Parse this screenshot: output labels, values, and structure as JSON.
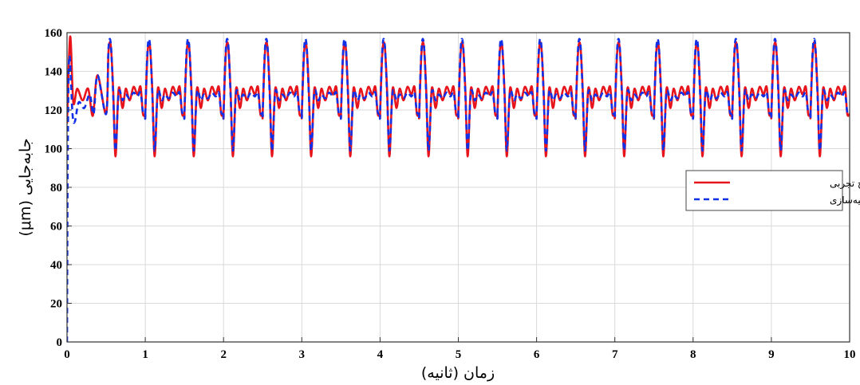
{
  "chart_data": {
    "type": "line",
    "xlabel": "زمان (ثانیه)",
    "ylabel": "جابه‌جایی (μm)",
    "xlim": [
      0,
      10
    ],
    "ylim": [
      0,
      160
    ],
    "xticks": [
      "0",
      "1",
      "2",
      "3",
      "4",
      "5",
      "6",
      "7",
      "8",
      "9",
      "10"
    ],
    "yticks": [
      "0",
      "20",
      "40",
      "60",
      "80",
      "100",
      "120",
      "140",
      "160"
    ],
    "grid": true,
    "legend_position": "right",
    "series": [
      {
        "name": "پاسخ تجربی",
        "color": "#e8141c",
        "style": "solid",
        "period_s": 0.5,
        "pattern": [
          [
            0.0,
            118
          ],
          [
            0.03,
            150
          ],
          [
            0.06,
            153
          ],
          [
            0.09,
            130
          ],
          [
            0.12,
            96
          ],
          [
            0.16,
            131
          ],
          [
            0.21,
            121
          ],
          [
            0.25,
            131
          ],
          [
            0.3,
            125
          ],
          [
            0.35,
            132
          ],
          [
            0.4,
            128
          ],
          [
            0.44,
            132
          ],
          [
            0.47,
            118
          ],
          [
            0.5,
            118
          ]
        ],
        "start": [
          [
            0.0,
            113
          ],
          [
            0.04,
            158
          ],
          [
            0.08,
            124
          ],
          [
            0.13,
            131
          ],
          [
            0.2,
            125
          ],
          [
            0.27,
            131
          ],
          [
            0.33,
            117
          ],
          [
            0.39,
            138
          ]
        ]
      },
      {
        "name": "پاسخ شبیه‌سازی",
        "color": "#1030e8",
        "style": "dashed",
        "period_s": 0.5,
        "pattern": [
          [
            0.0,
            118
          ],
          [
            0.03,
            152
          ],
          [
            0.06,
            154
          ],
          [
            0.09,
            128
          ],
          [
            0.12,
            99
          ],
          [
            0.16,
            129
          ],
          [
            0.21,
            125
          ],
          [
            0.25,
            128
          ],
          [
            0.3,
            126
          ],
          [
            0.35,
            129
          ],
          [
            0.4,
            127
          ],
          [
            0.44,
            129
          ],
          [
            0.47,
            119
          ],
          [
            0.5,
            118
          ]
        ],
        "start": [
          [
            0.0,
            0
          ],
          [
            0.01,
            100
          ],
          [
            0.03,
            148
          ],
          [
            0.07,
            118
          ],
          [
            0.1,
            114
          ],
          [
            0.15,
            124
          ],
          [
            0.22,
            121
          ],
          [
            0.29,
            128
          ],
          [
            0.34,
            118
          ],
          [
            0.39,
            138
          ]
        ]
      }
    ]
  }
}
